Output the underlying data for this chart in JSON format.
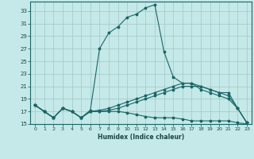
{
  "xlabel": "Humidex (Indice chaleur)",
  "background_color": "#c5e8e8",
  "grid_color": "#a0c8c8",
  "line_color": "#1a6666",
  "xlim": [
    -0.5,
    23.5
  ],
  "ylim": [
    15,
    34.5
  ],
  "yticks": [
    15,
    17,
    19,
    21,
    23,
    25,
    27,
    29,
    31,
    33
  ],
  "xticks": [
    0,
    1,
    2,
    3,
    4,
    5,
    6,
    7,
    8,
    9,
    10,
    11,
    12,
    13,
    14,
    15,
    16,
    17,
    18,
    19,
    20,
    21,
    22,
    23
  ],
  "line1_x": [
    0,
    1,
    2,
    3,
    4,
    5,
    6,
    7,
    8,
    9,
    10,
    11,
    12,
    13,
    14,
    15,
    16,
    17,
    18,
    19,
    20,
    21,
    22,
    23
  ],
  "line1_y": [
    18.0,
    17.0,
    16.0,
    17.5,
    17.0,
    16.0,
    17.2,
    27.0,
    29.5,
    30.5,
    32.0,
    32.5,
    33.5,
    34.0,
    26.5,
    22.5,
    21.5,
    21.5,
    20.5,
    20.0,
    19.5,
    19.0,
    17.5,
    15.2
  ],
  "line2_x": [
    0,
    1,
    2,
    3,
    4,
    5,
    6,
    7,
    8,
    9,
    10,
    11,
    12,
    13,
    14,
    15,
    16,
    17,
    18,
    19,
    20,
    21,
    22,
    23
  ],
  "line2_y": [
    18.0,
    17.0,
    16.0,
    17.5,
    17.0,
    16.0,
    17.0,
    17.2,
    17.5,
    18.0,
    18.5,
    19.0,
    19.5,
    20.0,
    20.5,
    21.0,
    21.5,
    21.5,
    21.0,
    20.5,
    20.0,
    20.0,
    17.5,
    15.2
  ],
  "line3_x": [
    0,
    1,
    2,
    3,
    4,
    5,
    6,
    7,
    8,
    9,
    10,
    11,
    12,
    13,
    14,
    15,
    16,
    17,
    18,
    19,
    20,
    21,
    22,
    23
  ],
  "line3_y": [
    18.0,
    17.0,
    16.0,
    17.5,
    17.0,
    16.0,
    17.0,
    17.0,
    17.2,
    17.5,
    18.0,
    18.5,
    19.0,
    19.5,
    20.0,
    20.5,
    21.0,
    21.0,
    21.0,
    20.5,
    20.0,
    19.5,
    17.5,
    15.2
  ],
  "line4_x": [
    0,
    1,
    2,
    3,
    4,
    5,
    6,
    7,
    8,
    9,
    10,
    11,
    12,
    13,
    14,
    15,
    16,
    17,
    18,
    19,
    20,
    21,
    22,
    23
  ],
  "line4_y": [
    18.0,
    17.0,
    16.0,
    17.5,
    17.0,
    16.0,
    17.0,
    17.0,
    17.0,
    17.0,
    16.8,
    16.5,
    16.2,
    16.0,
    16.0,
    16.0,
    15.8,
    15.5,
    15.5,
    15.5,
    15.5,
    15.5,
    15.2,
    15.0
  ]
}
